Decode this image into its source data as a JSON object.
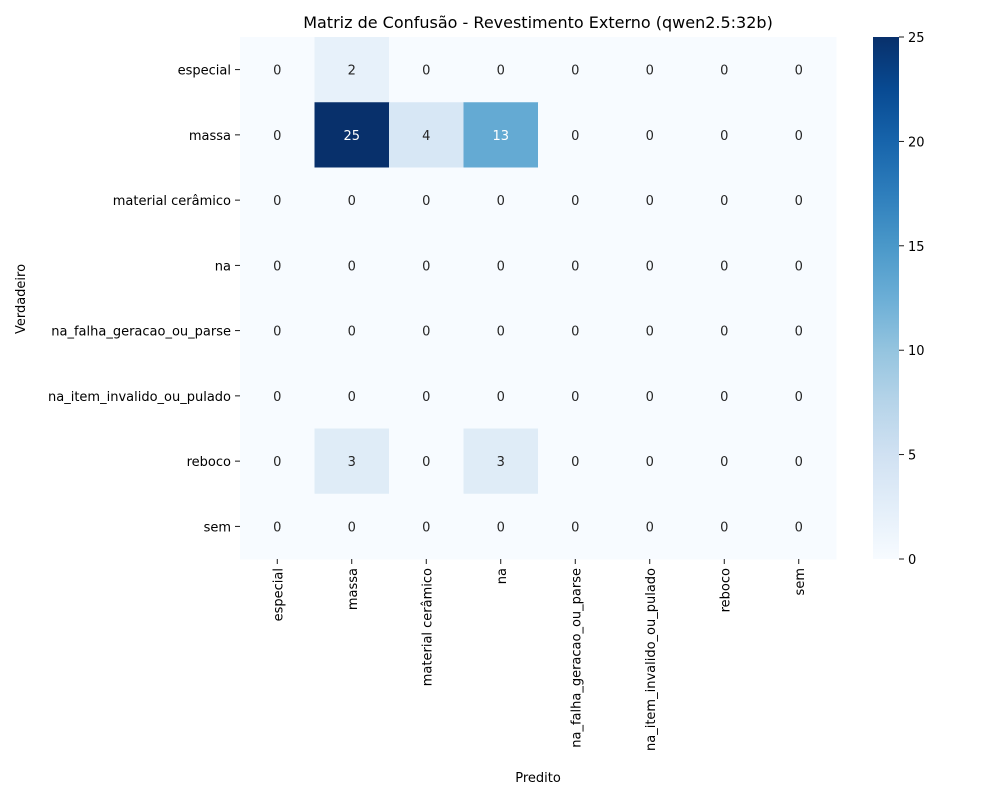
{
  "chart_data": {
    "type": "heatmap",
    "title": "Matriz de Confusão - Revestimento Externo (qwen2.5:32b)",
    "xlabel": "Predito",
    "ylabel": "Verdadeiro",
    "row_labels": [
      "especial",
      "massa",
      "material cerâmico",
      "na",
      "na_falha_geracao_ou_parse",
      "na_item_invalido_ou_pulado",
      "reboco",
      "sem"
    ],
    "col_labels": [
      "especial",
      "massa",
      "material cerâmico",
      "na",
      "na_falha_geracao_ou_parse",
      "na_item_invalido_ou_pulado",
      "reboco",
      "sem"
    ],
    "values": [
      [
        0,
        2,
        0,
        0,
        0,
        0,
        0,
        0
      ],
      [
        0,
        25,
        4,
        13,
        0,
        0,
        0,
        0
      ],
      [
        0,
        0,
        0,
        0,
        0,
        0,
        0,
        0
      ],
      [
        0,
        0,
        0,
        0,
        0,
        0,
        0,
        0
      ],
      [
        0,
        0,
        0,
        0,
        0,
        0,
        0,
        0
      ],
      [
        0,
        0,
        0,
        0,
        0,
        0,
        0,
        0
      ],
      [
        0,
        3,
        0,
        3,
        0,
        0,
        0,
        0
      ],
      [
        0,
        0,
        0,
        0,
        0,
        0,
        0,
        0
      ]
    ],
    "colorbar": {
      "min": 0,
      "max": 25,
      "ticks": [
        0,
        5,
        10,
        15,
        20,
        25
      ],
      "colormap": "Blues"
    },
    "colors": {
      "low": "#f7fbff",
      "high": "#08306b"
    }
  }
}
